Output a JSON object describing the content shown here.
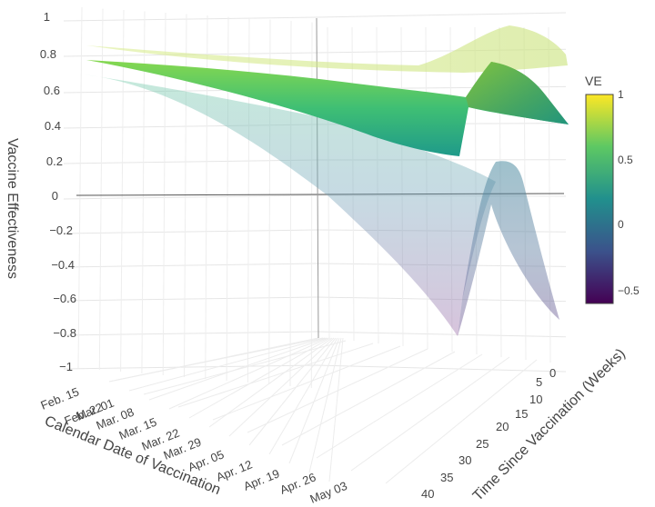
{
  "chart_data": {
    "type": "surface",
    "z_axis": {
      "title": "Vaccine Effectiveness",
      "ticks": [
        "1",
        "0.8",
        "0.6",
        "0.4",
        "0.2",
        "0",
        "−0.2",
        "−0.4",
        "−0.6",
        "−0.8",
        "−1"
      ],
      "range": [
        -1,
        1
      ]
    },
    "x_axis": {
      "title": "Calendar Date of Vaccination",
      "ticks": [
        "Feb. 15",
        "Feb. 22",
        "Mar. 01",
        "Mar. 08",
        "Mar. 15",
        "Mar. 22",
        "Mar. 29",
        "Apr. 05",
        "Apr. 12",
        "Apr. 19",
        "Apr. 26",
        "May  03"
      ]
    },
    "y_axis": {
      "title": "Time Since Vaccination (Weeks)",
      "ticks": [
        "0",
        "5",
        "10",
        "15",
        "20",
        "25",
        "30",
        "35",
        "40"
      ],
      "range": [
        0,
        40
      ]
    },
    "colorbar": {
      "title": "VE",
      "ticks": [
        "1",
        "0.5",
        "0",
        "−0.5"
      ],
      "range": [
        -0.6,
        1
      ],
      "colorscale": [
        "#440154",
        "#3b528b",
        "#21908d",
        "#5dc863",
        "#fde725"
      ]
    },
    "surfaces": [
      {
        "role": "upper bound",
        "opacity": 0.35,
        "ve_range": [
          0.8,
          0.95
        ]
      },
      {
        "role": "estimate",
        "opacity": 1.0,
        "ve_range": [
          0.25,
          0.85
        ]
      },
      {
        "role": "lower bound",
        "opacity": 0.3,
        "ve_range": [
          -0.8,
          0.7
        ]
      }
    ],
    "grid": true
  }
}
